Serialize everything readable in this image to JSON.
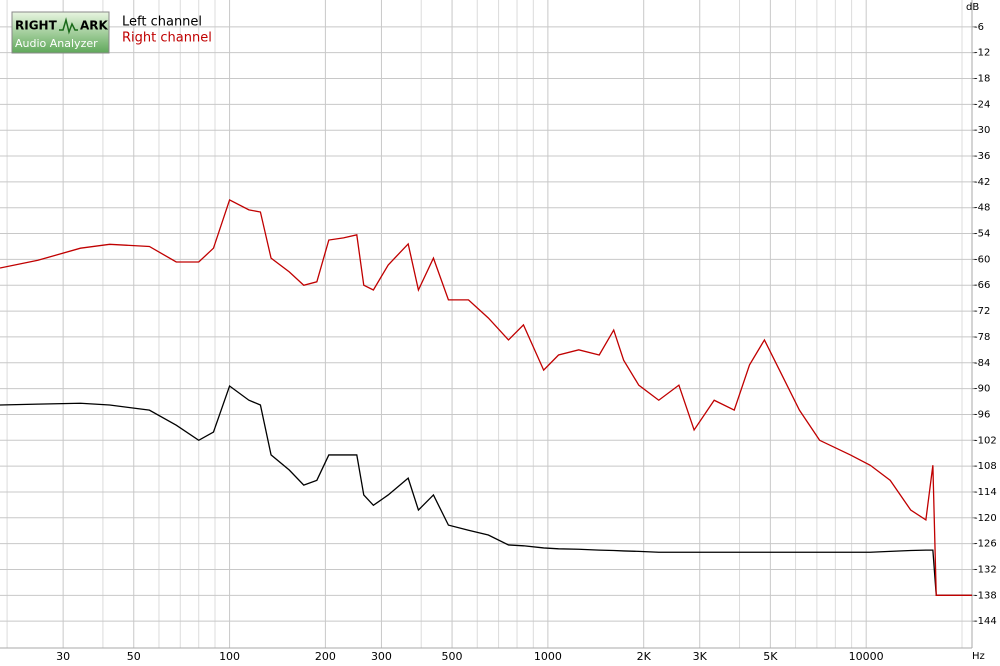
{
  "logo": [
    "RIGHT",
    "ARK",
    "Audio Analyzer"
  ],
  "chart_data": {
    "type": "line",
    "x_unit": "Hz",
    "y_unit": "dB",
    "log_x": true,
    "grid": true,
    "xlim": [
      19,
      21500
    ],
    "ylim": [
      -150,
      0
    ],
    "xticks": [
      30,
      50,
      100,
      200,
      300,
      500,
      1000,
      {
        "value": 2000,
        "label": "2K"
      },
      {
        "value": 3000,
        "label": "3K"
      },
      {
        "value": 5000,
        "label": "5K"
      },
      10000
    ],
    "xminor": [
      20,
      40,
      60,
      70,
      80,
      90,
      400,
      600,
      700,
      800,
      900,
      4000,
      6000,
      7000,
      8000,
      9000,
      20000
    ],
    "yticks": [
      -6,
      -12,
      -18,
      -24,
      -30,
      -36,
      -42,
      -48,
      -54,
      -60,
      -66,
      -72,
      -78,
      -84,
      -90,
      -96,
      -102,
      -108,
      -114,
      -120,
      -126,
      -132,
      -138,
      -144
    ],
    "x": [
      19,
      25,
      34,
      42,
      56,
      68,
      80,
      89,
      100,
      115,
      125,
      135,
      154,
      171,
      188,
      205,
      228,
      251,
      264,
      283,
      315,
      364,
      392,
      437,
      487,
      563,
      650,
      752,
      838,
      970,
      1080,
      1250,
      1450,
      1610,
      1730,
      1930,
      2230,
      2580,
      2880,
      3330,
      3850,
      4300,
      4790,
      5340,
      6170,
      7140,
      8920,
      10300,
      11900,
      13800,
      15400,
      16200,
      16600,
      21500
    ],
    "series": [
      {
        "name": "Left channel",
        "color": "#000000",
        "values": [
          -93.8,
          -93.6,
          -93.4,
          -93.8,
          -95,
          -98.5,
          -102,
          -100.1,
          -89.4,
          -92.7,
          -93.8,
          -105.4,
          -108.9,
          -112.4,
          -111.3,
          -105.4,
          -105.4,
          -105.4,
          -114.7,
          -117.1,
          -114.7,
          -110.8,
          -118.2,
          -114.7,
          -121.7,
          -122.9,
          -124,
          -126.3,
          -126.5,
          -127,
          -127.2,
          -127.3,
          -127.5,
          -127.6,
          -127.7,
          -127.8,
          -128,
          -128,
          -128,
          -128,
          -128,
          -128,
          -128,
          -128,
          -128,
          -128,
          -128,
          -128,
          -127.8,
          -127.6,
          -127.5,
          -127.5,
          -138,
          -138
        ]
      },
      {
        "name": "Right channel",
        "color": "#c00000",
        "values": [
          -62,
          -60.2,
          -57.4,
          -56.5,
          -57,
          -60.6,
          -60.6,
          -57.4,
          -46.2,
          -48.5,
          -49,
          -59.7,
          -62.9,
          -66,
          -65.2,
          -55.5,
          -55,
          -54.3,
          -66,
          -67.1,
          -61.3,
          -56.4,
          -67.1,
          -59.7,
          -69.4,
          -69.4,
          -73.6,
          -78.7,
          -75.2,
          -85.7,
          -82.2,
          -81,
          -82.2,
          -76.4,
          -83.4,
          -89.2,
          -92.7,
          -89.2,
          -99.6,
          -92.7,
          -95,
          -84.5,
          -78.7,
          -85.7,
          -95,
          -102,
          -105.4,
          -107.8,
          -111.3,
          -118.2,
          -120.5,
          -107.8,
          -138,
          -138
        ]
      }
    ]
  }
}
